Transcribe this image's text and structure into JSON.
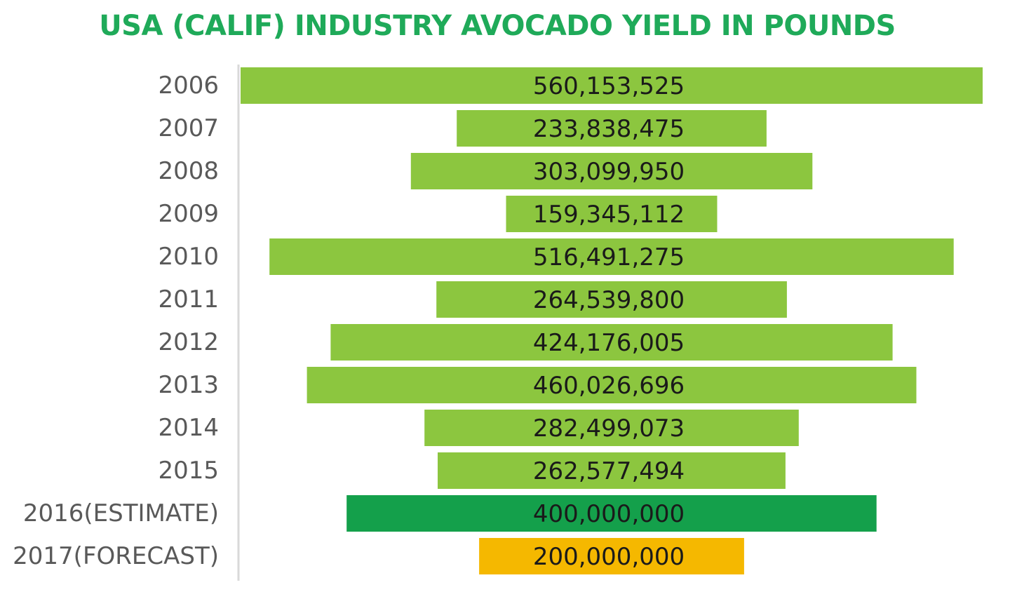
{
  "chart_data": {
    "type": "bar",
    "orientation": "horizontal-centered",
    "title": "USA (CALIF) INDUSTRY AVOCADO YIELD IN POUNDS",
    "xlabel": "",
    "ylabel": "",
    "categories": [
      "2006",
      "2007",
      "2008",
      "2009",
      "2010",
      "2011",
      "2012",
      "2013",
      "2014",
      "2015",
      "2016(ESTIMATE)",
      "2017(FORECAST)"
    ],
    "values": [
      560153525,
      233838475,
      303099950,
      159345112,
      516491275,
      264539800,
      424176005,
      460026696,
      282499073,
      262577494,
      400000000,
      200000000
    ],
    "value_labels": [
      "560,153,525",
      "233,838,475",
      "303,099,950",
      "159,345,112",
      "516,491,275",
      "264,539,800",
      "424,176,005",
      "460,026,696",
      "282,499,073",
      "262,577,494",
      "400,000,000",
      "200,000,000"
    ],
    "bar_colors": [
      "#8cc63f",
      "#8cc63f",
      "#8cc63f",
      "#8cc63f",
      "#8cc63f",
      "#8cc63f",
      "#8cc63f",
      "#8cc63f",
      "#8cc63f",
      "#8cc63f",
      "#14a04b",
      "#f5b800"
    ],
    "grid": false,
    "legend": "none",
    "axis_line_color": "#d9d9d9",
    "title_color": "#1faa59"
  }
}
